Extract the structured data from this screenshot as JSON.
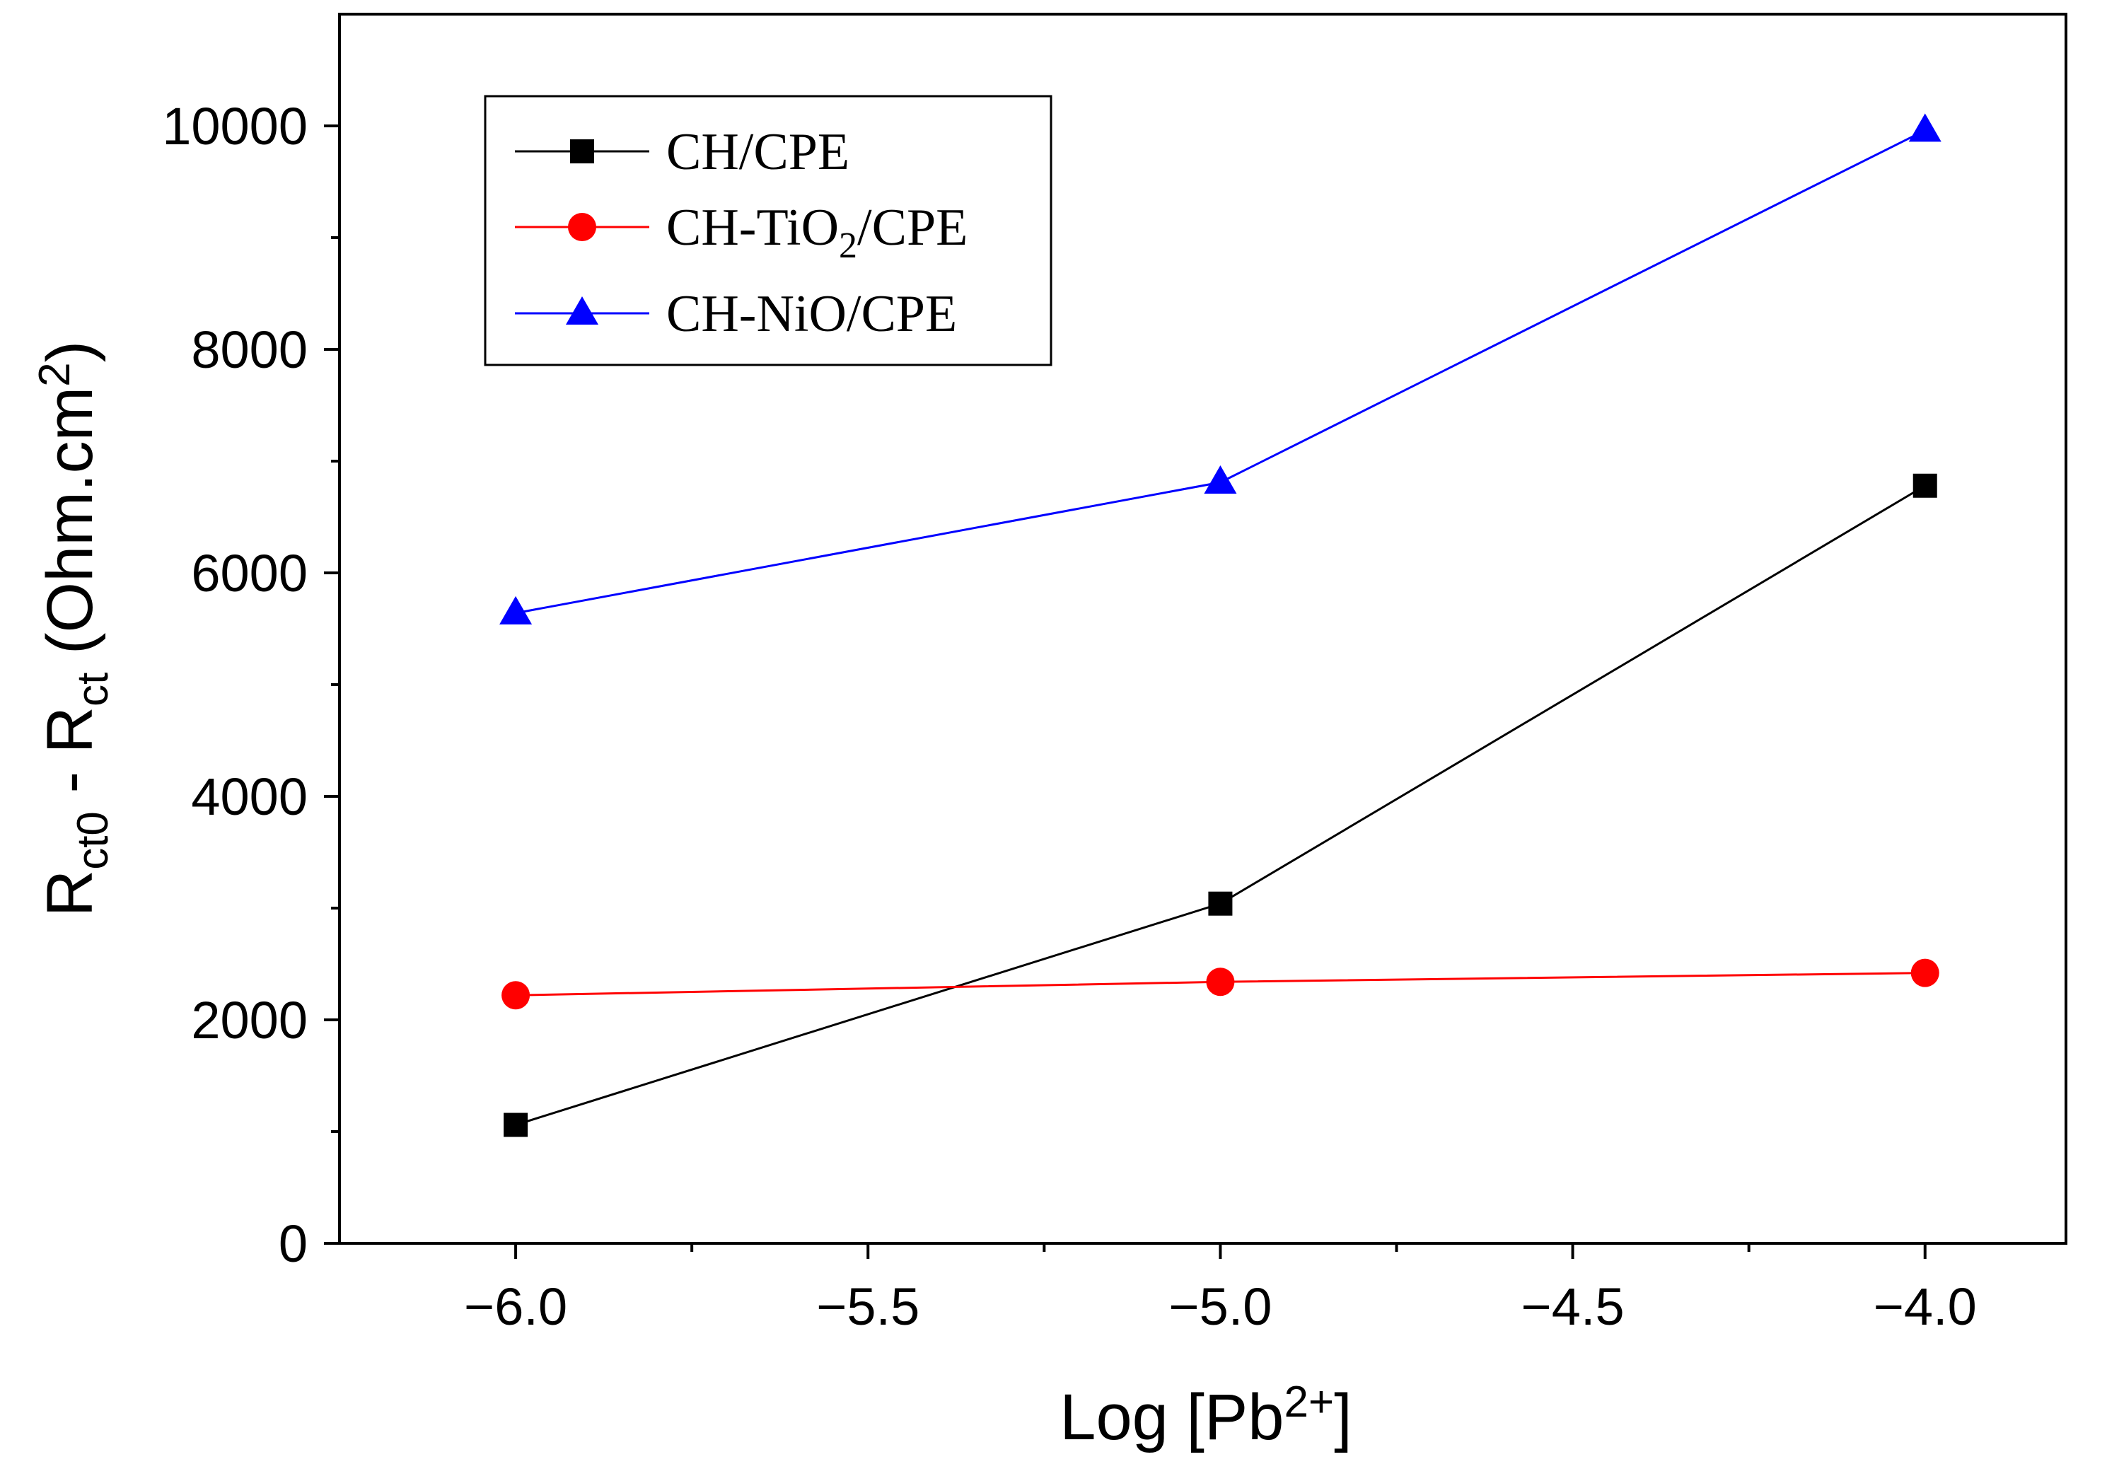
{
  "chart_data": {
    "type": "line",
    "x": [
      -6.0,
      -5.0,
      -4.0
    ],
    "series": [
      {
        "name": "CH/CPE",
        "label_main": "CH/CPE",
        "label_sub": "",
        "label_post": "",
        "color": "#000000",
        "marker": "square",
        "values": [
          1060,
          3040,
          6780
        ]
      },
      {
        "name": "CH-TiO2/CPE",
        "label_main": "CH-TiO",
        "label_sub": "2",
        "label_post": "/CPE",
        "color": "#ff0000",
        "marker": "circle",
        "values": [
          2220,
          2340,
          2420
        ]
      },
      {
        "name": "CH-NiO/CPE",
        "label_main": "CH-NiO/CPE",
        "label_sub": "",
        "label_post": "",
        "color": "#0000ff",
        "marker": "triangle",
        "values": [
          5640,
          6810,
          9960
        ]
      }
    ],
    "xlim": [
      -6.25,
      -3.8
    ],
    "ylim": [
      0,
      11000
    ],
    "x_major_ticks": [
      -6.0,
      -5.5,
      -5.0,
      -4.5,
      -4.0
    ],
    "x_tick_labels": [
      "−6.0",
      "−5.5",
      "−5.0",
      "−4.5",
      "−4.0"
    ],
    "y_major_ticks": [
      0,
      2000,
      4000,
      6000,
      8000,
      10000
    ],
    "y_tick_labels": [
      "0",
      "2000",
      "4000",
      "6000",
      "8000",
      "10000"
    ],
    "xlabel": {
      "main": "Log [Pb",
      "sup": "2+",
      "post": "]"
    },
    "ylabel": {
      "r1": "R",
      "s1": "ct0",
      "mid": " - R",
      "s2": "ct",
      "unit": " (Ohm.cm",
      "sup": "2",
      "close": ")"
    },
    "legend_position": "top-left",
    "grid": false
  }
}
